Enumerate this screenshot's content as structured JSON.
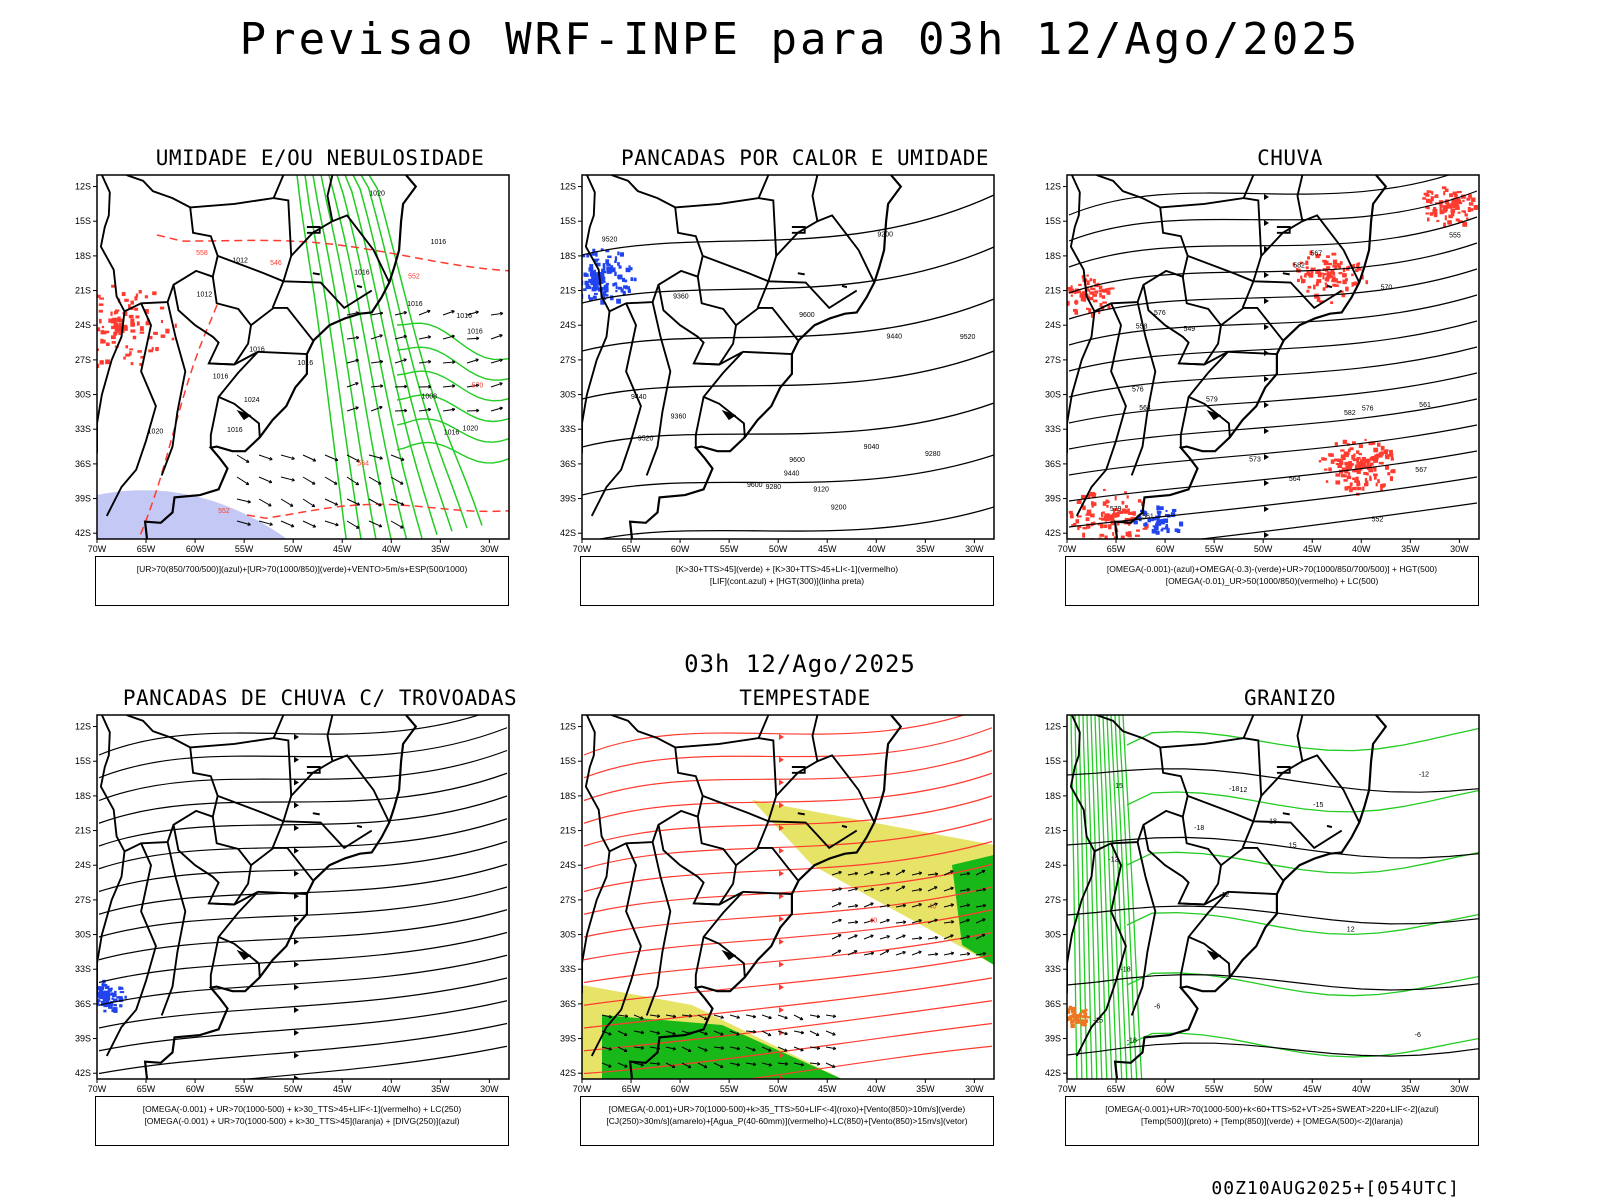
{
  "header": {
    "title": "Previsao WRF-INPE  para 03h 12/Ago/2025"
  },
  "mid_title": "03h 12/Ago/2025",
  "footer": {
    "stamp": "00Z10AUG2025+[054UTC]"
  },
  "axes": {
    "lat_labels": [
      "12S",
      "15S",
      "18S",
      "21S",
      "24S",
      "27S",
      "30S",
      "33S",
      "36S",
      "39S",
      "42S"
    ],
    "lon_labels": [
      "70W",
      "65W",
      "60W",
      "55W",
      "50W",
      "45W",
      "40W",
      "35W",
      "30W"
    ]
  },
  "panels": [
    {
      "title": "UMIDADE E/OU NEBULOSIDADE",
      "legend": [
        "[UR>70(850/700/500)](azul)+[UR>70(1000/850)](verde)+VENTO>5m/s+ESP(500/1000)"
      ],
      "labels": [
        "1012",
        "1016",
        "1016",
        "1016",
        "1016",
        "1020",
        "1024",
        "1020",
        "1016",
        "1016",
        "1012",
        "1008",
        "1016",
        "1016",
        "1020",
        "1016",
        "1016",
        "570",
        "564",
        "552",
        "546",
        "558",
        "552"
      ]
    },
    {
      "title": "PANCADAS POR CALOR E UMIDADE",
      "legend": [
        "[K>30+TTS>45](verde) + [K>30+TTS>45+LI<-1](vermelho)",
        "[LIF](cont.azul) + [HGT(300)](linha preta)"
      ],
      "labels": [
        "9600",
        "9600",
        "9600",
        "9520",
        "9520",
        "9520",
        "9440",
        "9440",
        "9440",
        "9360",
        "9360",
        "9280",
        "9280",
        "9200",
        "9200",
        "9120",
        "9040"
      ]
    },
    {
      "title": "CHUVA",
      "legend": [
        "[OMEGA(-0.001)-(azul)+OMEGA(-0.3)-(verde)+UR>70(1000/850/700/500)] + HGT(500)",
        "[OMEGA(-0.01)_UR>50(1000/850)(vermelho) + LC(500)"
      ],
      "labels": [
        "582",
        "582",
        "579",
        "576",
        "576",
        "573",
        "570",
        "567",
        "564",
        "561",
        "558",
        "555",
        "552",
        "549",
        "579",
        "576",
        "567",
        "564",
        "561"
      ]
    },
    {
      "title": "PANCADAS DE CHUVA C/ TROVOADAS",
      "legend": [
        "[OMEGA(-0.001) + UR>70(1000-500) + k>30_TTS>45+LIF<-1](vermelho) + LC(250)",
        "[OMEGA(-0.001) + UR>70(1000-500) + k>30_TTS>45](laranja) + [DIVG(250)](azul)"
      ],
      "labels": []
    },
    {
      "title": "TEMPESTADE",
      "legend": [
        "[OMEGA(-0.001)+UR>70(1000-500)+k>35_TTS>50+LIF<-4](roxo)+[Vento(850)>10m/s](verde)",
        "[CJ(250)>30m/s](amarelo)+[Agua_P(40-60mm)](vermelho)+LC(850)+[Vento(850)>15m/s](vetor)"
      ],
      "labels": [
        "40",
        "40"
      ]
    },
    {
      "title": "GRANIZO",
      "legend": [
        "[OMEGA(-0.001)+UR>70(1000-500)+k<60+TTS>52+VT>25+SWEAT>220+LIF<-2](azul)",
        "[Temp(500)](preto) + [Temp(850)](verde) + [OMEGA(500)<-2](laranja)"
      ],
      "labels": [
        "-6",
        "-12",
        "-12",
        "-12",
        "-15",
        "-18",
        "-18",
        "-18",
        "-18",
        "-18",
        "-15",
        "-6",
        "12",
        "15",
        "12",
        "15"
      ]
    }
  ],
  "colors": {
    "black": "#000000",
    "red": "#ff3b30",
    "green": "#22cc22",
    "blue": "#2244ee",
    "lavender": "#aab0f0",
    "yellow": "#e0dc40",
    "dark_green": "#18b818",
    "orange": "#ee7722"
  },
  "icons": [
    "wind-vector-arrow",
    "streamline-arrow"
  ]
}
